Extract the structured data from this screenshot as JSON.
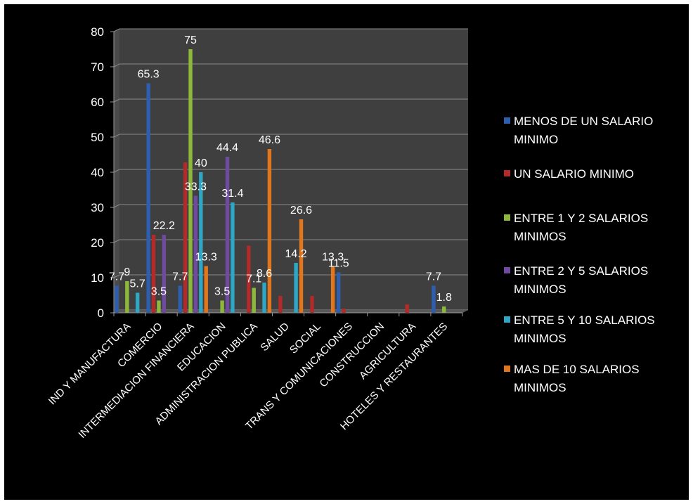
{
  "chart_data": {
    "type": "bar",
    "categories": [
      "IND Y MANUFACTURA",
      "COMERCIO",
      "INTERMEDIACION FINANCIERA",
      "EDUCACION",
      "ADMINISTRACION PUBLICA",
      "SALUD",
      "SOCIAL",
      "TRANS Y COMUNICACIONES",
      "CONSTRUCCION",
      "AGRICULTURA",
      "HOTELES Y RESTAURANTES"
    ],
    "ylim": [
      0,
      80
    ],
    "yticks": [
      0,
      10,
      20,
      30,
      40,
      50,
      60,
      70,
      80
    ],
    "grid": true,
    "legend_position": "right",
    "series": [
      {
        "name": "MENOS DE UN SALARIO MINIMO",
        "color": "#2e5fae",
        "values": [
          7.7,
          65.3,
          7.7,
          0,
          0,
          0,
          0,
          11.5,
          0,
          0,
          7.7
        ]
      },
      {
        "name": "UN SALARIO MINIMO",
        "color": "#b32a2a",
        "values": [
          0,
          22.2,
          42.8,
          0,
          19.1,
          4.8,
          4.8,
          1.2,
          0,
          2.4,
          0
        ]
      },
      {
        "name": "ENTRE 1 Y 2 SALARIOS MINIMOS",
        "color": "#8db83c",
        "values": [
          9,
          3.5,
          75,
          3.5,
          7.1,
          0,
          0,
          0,
          0,
          0,
          1.8
        ]
      },
      {
        "name": "ENTRE 2 Y 5 SALARIOS MINIMOS",
        "color": "#6e4b9e",
        "values": [
          0,
          22.2,
          33.3,
          44.4,
          0,
          0,
          0,
          0,
          0,
          0,
          0
        ]
      },
      {
        "name": "ENTRE 5 Y 10 SALARIOS MINIMOS",
        "color": "#2ea6c4",
        "values": [
          5.7,
          0,
          40,
          31.4,
          8.6,
          14.2,
          0,
          0,
          0,
          0,
          0
        ]
      },
      {
        "name": "MAS DE 10 SALARIOS MINIMOS",
        "color": "#e0761e",
        "values": [
          0,
          0,
          13.3,
          0,
          46.6,
          26.6,
          13.3,
          0,
          0,
          0,
          0
        ]
      }
    ],
    "data_labels": [
      {
        "cat": 0,
        "series": 0,
        "text": "7.7"
      },
      {
        "cat": 0,
        "series": 2,
        "text": "9"
      },
      {
        "cat": 0,
        "series": 4,
        "text": "5.7"
      },
      {
        "cat": 1,
        "series": 0,
        "text": "65.3"
      },
      {
        "cat": 1,
        "series": 2,
        "text": "3.5"
      },
      {
        "cat": 1,
        "series": 3,
        "text": "22.2"
      },
      {
        "cat": 2,
        "series": 0,
        "text": "7.7"
      },
      {
        "cat": 2,
        "series": 2,
        "text": "75"
      },
      {
        "cat": 2,
        "series": 3,
        "text": "33.3"
      },
      {
        "cat": 2,
        "series": 4,
        "text": "40"
      },
      {
        "cat": 2,
        "series": 5,
        "text": "13.3"
      },
      {
        "cat": 3,
        "series": 2,
        "text": "3.5"
      },
      {
        "cat": 3,
        "series": 3,
        "text": "44.4"
      },
      {
        "cat": 3,
        "series": 4,
        "text": "31.4"
      },
      {
        "cat": 4,
        "series": 2,
        "text": "7.1"
      },
      {
        "cat": 4,
        "series": 4,
        "text": "8.6"
      },
      {
        "cat": 4,
        "series": 5,
        "text": "46.6"
      },
      {
        "cat": 5,
        "series": 4,
        "text": "14.2"
      },
      {
        "cat": 5,
        "series": 5,
        "text": "26.6"
      },
      {
        "cat": 6,
        "series": 5,
        "text": "13.3"
      },
      {
        "cat": 7,
        "series": 0,
        "text": "11.5"
      },
      {
        "cat": 10,
        "series": 0,
        "text": "7.7"
      },
      {
        "cat": 10,
        "series": 2,
        "text": "1.8"
      }
    ]
  }
}
